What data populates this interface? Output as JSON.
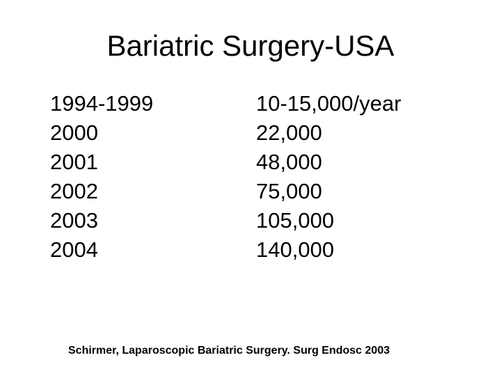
{
  "slide": {
    "title": "Bariatric Surgery-USA",
    "rows": [
      {
        "year": "1994-1999",
        "value": "10-15,000/year"
      },
      {
        "year": "2000",
        "value": "22,000"
      },
      {
        "year": "2001",
        "value": "48,000"
      },
      {
        "year": "2002",
        "value": "75,000"
      },
      {
        "year": "2003",
        "value": "105,000"
      },
      {
        "year": "2004",
        "value": "140,000"
      }
    ],
    "footer": "Schirmer, Laparoscopic Bariatric Surgery. Surg Endosc 2003",
    "colors": {
      "background": "#ffffff",
      "text": "#000000"
    }
  }
}
